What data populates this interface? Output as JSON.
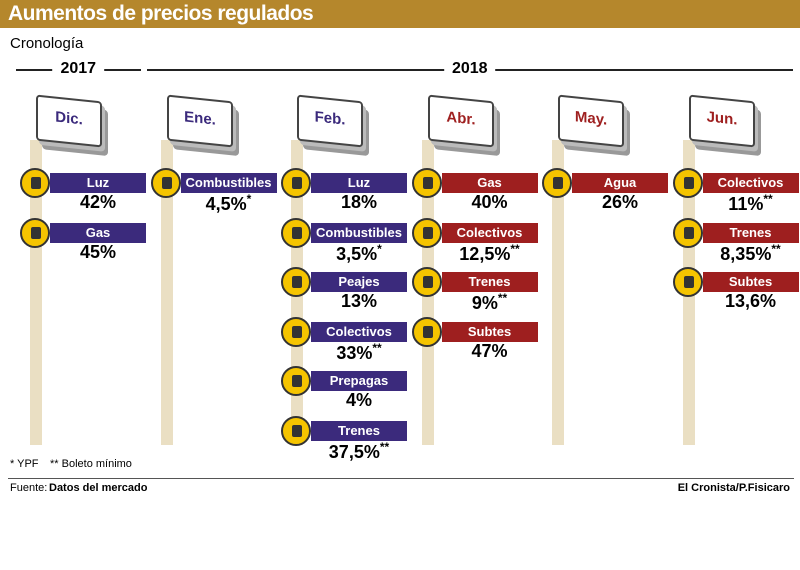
{
  "header": {
    "title": "Aumentos de precios regulados",
    "subtitle": "Cronología"
  },
  "years": [
    {
      "label": "2017",
      "columns": 1
    },
    {
      "label": "2018",
      "columns": 5
    }
  ],
  "columns": [
    {
      "month": "Dic.",
      "color": "#3b2a7c",
      "items": [
        {
          "name": "Luz",
          "value": "42%"
        },
        {
          "name": "Gas",
          "value": "45%"
        }
      ]
    },
    {
      "month": "Ene.",
      "color": "#3b2a7c",
      "items": [
        {
          "name": "Combustibles",
          "value": "4,5%",
          "note": "*"
        }
      ]
    },
    {
      "month": "Feb.",
      "color": "#3b2a7c",
      "items": [
        {
          "name": "Luz",
          "value": "18%"
        },
        {
          "name": "Combustibles",
          "value": "3,5%",
          "note": "*"
        },
        {
          "name": "Peajes",
          "value": "13%"
        },
        {
          "name": "Colectivos",
          "value": "33%",
          "note": "**"
        },
        {
          "name": "Prepagas",
          "value": "4%"
        },
        {
          "name": "Trenes",
          "value": "37,5%",
          "note": "**"
        }
      ]
    },
    {
      "month": "Abr.",
      "color": "#9e1f1f",
      "items": [
        {
          "name": "Gas",
          "value": "40%"
        },
        {
          "name": "Colectivos",
          "value": "12,5%",
          "note": "**"
        },
        {
          "name": "Trenes",
          "value": "9%",
          "note": "**"
        },
        {
          "name": "Subtes",
          "value": "47%"
        }
      ]
    },
    {
      "month": "May.",
      "color": "#9e1f1f",
      "items": [
        {
          "name": "Agua",
          "value": "26%"
        }
      ]
    },
    {
      "month": "Jun.",
      "color": "#9e1f1f",
      "items": [
        {
          "name": "Colectivos",
          "value": "11%",
          "note": "**"
        },
        {
          "name": "Trenes",
          "value": "8,35%",
          "note": "**"
        },
        {
          "name": "Subtes",
          "value": "13,6%"
        }
      ]
    }
  ],
  "footnotes": [
    "* YPF",
    "** Boleto mínimo"
  ],
  "footer": {
    "source_label": "Fuente:",
    "source": "Datos del mercado",
    "credit": "El Cronista/P.Fisicaro"
  }
}
